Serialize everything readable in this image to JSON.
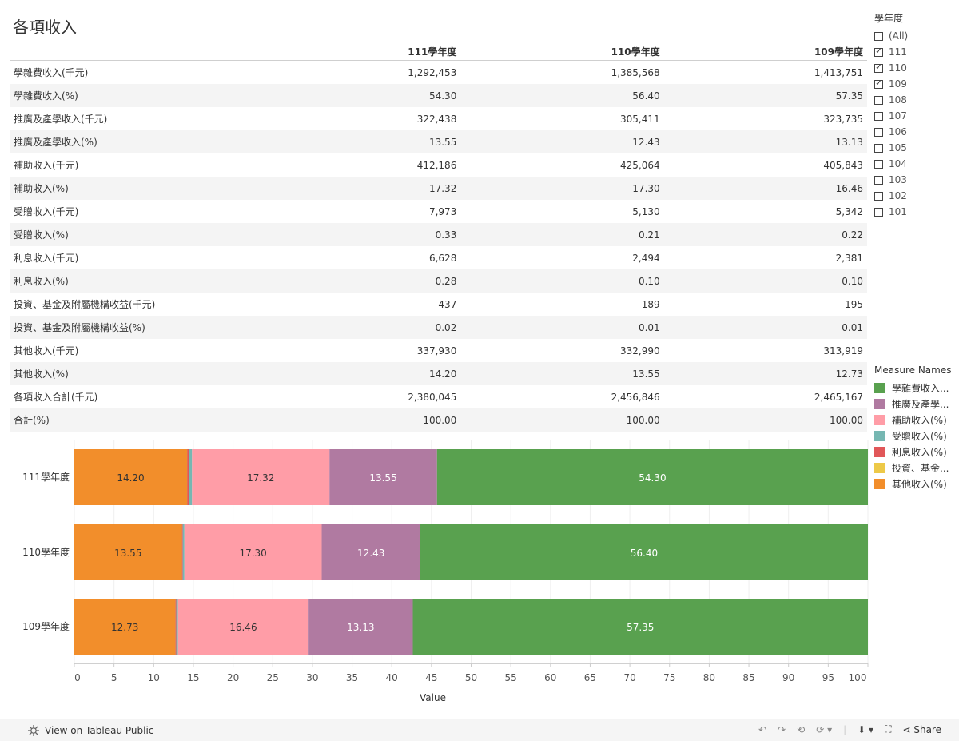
{
  "title": "各項收入",
  "table": {
    "headers": [
      "111學年度",
      "110學年度",
      "109學年度"
    ],
    "rows": [
      {
        "label": "學雜費收入(千元)",
        "values": [
          "1,292,453",
          "1,385,568",
          "1,413,751"
        ]
      },
      {
        "label": "學雜費收入(%)",
        "values": [
          "54.30",
          "56.40",
          "57.35"
        ]
      },
      {
        "label": "推廣及產學收入(千元)",
        "values": [
          "322,438",
          "305,411",
          "323,735"
        ]
      },
      {
        "label": "推廣及產學收入(%)",
        "values": [
          "13.55",
          "12.43",
          "13.13"
        ]
      },
      {
        "label": "補助收入(千元)",
        "values": [
          "412,186",
          "425,064",
          "405,843"
        ]
      },
      {
        "label": "補助收入(%)",
        "values": [
          "17.32",
          "17.30",
          "16.46"
        ]
      },
      {
        "label": "受贈收入(千元)",
        "values": [
          "7,973",
          "5,130",
          "5,342"
        ]
      },
      {
        "label": "受贈收入(%)",
        "values": [
          "0.33",
          "0.21",
          "0.22"
        ]
      },
      {
        "label": "利息收入(千元)",
        "values": [
          "6,628",
          "2,494",
          "2,381"
        ]
      },
      {
        "label": "利息收入(%)",
        "values": [
          "0.28",
          "0.10",
          "0.10"
        ]
      },
      {
        "label": "投資、基金及附屬機構收益(千元)",
        "values": [
          "437",
          "189",
          "195"
        ]
      },
      {
        "label": "投資、基金及附屬機構收益(%)",
        "values": [
          "0.02",
          "0.01",
          "0.01"
        ]
      },
      {
        "label": "其他收入(千元)",
        "values": [
          "337,930",
          "332,990",
          "313,919"
        ]
      },
      {
        "label": "其他收入(%)",
        "values": [
          "14.20",
          "13.55",
          "12.73"
        ]
      },
      {
        "label": "各項收入合計(千元)",
        "values": [
          "2,380,045",
          "2,456,846",
          "2,465,167"
        ]
      },
      {
        "label": "合計(%)",
        "values": [
          "100.00",
          "100.00",
          "100.00"
        ]
      }
    ]
  },
  "filter": {
    "title": "學年度",
    "items": [
      {
        "label": "(All)",
        "checked": false
      },
      {
        "label": "111",
        "checked": true
      },
      {
        "label": "110",
        "checked": true
      },
      {
        "label": "109",
        "checked": true
      },
      {
        "label": "108",
        "checked": false
      },
      {
        "label": "107",
        "checked": false
      },
      {
        "label": "106",
        "checked": false
      },
      {
        "label": "105",
        "checked": false
      },
      {
        "label": "104",
        "checked": false
      },
      {
        "label": "103",
        "checked": false
      },
      {
        "label": "102",
        "checked": false
      },
      {
        "label": "101",
        "checked": false
      }
    ]
  },
  "legend": {
    "title": "Measure Names",
    "items": [
      {
        "label": "學雜費收入...",
        "color": "#59a14f"
      },
      {
        "label": "推廣及產學...",
        "color": "#b07aa1"
      },
      {
        "label": "補助收入(%)",
        "color": "#ff9da7"
      },
      {
        "label": "受贈收入(%)",
        "color": "#76b7b2"
      },
      {
        "label": "利息收入(%)",
        "color": "#e15759"
      },
      {
        "label": "投資、基金...",
        "color": "#edc948"
      },
      {
        "label": "其他收入(%)",
        "color": "#f28e2b"
      }
    ]
  },
  "chart_data": {
    "type": "bar",
    "orientation": "horizontal",
    "stacked": true,
    "categories": [
      "111學年度",
      "110學年度",
      "109學年度"
    ],
    "series": [
      {
        "name": "其他收入(%)",
        "color": "#f28e2b",
        "values": [
          14.2,
          13.55,
          12.73
        ],
        "labels": [
          "14.20",
          "13.55",
          "12.73"
        ]
      },
      {
        "name": "投資、基金及附屬機構收益(%)",
        "color": "#edc948",
        "values": [
          0.02,
          0.01,
          0.01
        ]
      },
      {
        "name": "利息收入(%)",
        "color": "#e15759",
        "values": [
          0.28,
          0.1,
          0.1
        ]
      },
      {
        "name": "受贈收入(%)",
        "color": "#76b7b2",
        "values": [
          0.33,
          0.21,
          0.22
        ]
      },
      {
        "name": "補助收入(%)",
        "color": "#ff9da7",
        "values": [
          17.32,
          17.3,
          16.46
        ],
        "labels": [
          "17.32",
          "17.30",
          "16.46"
        ]
      },
      {
        "name": "推廣及產學收入(%)",
        "color": "#b07aa1",
        "values": [
          13.55,
          12.43,
          13.13
        ],
        "labels": [
          "13.55",
          "12.43",
          "13.13"
        ]
      },
      {
        "name": "學雜費收入(%)",
        "color": "#59a14f",
        "values": [
          54.3,
          56.4,
          57.35
        ],
        "labels": [
          "54.30",
          "56.40",
          "57.35"
        ]
      }
    ],
    "xlabel": "Value",
    "xlim": [
      0,
      100
    ],
    "xticks": [
      "0",
      "5",
      "10",
      "15",
      "20",
      "25",
      "30",
      "35",
      "40",
      "45",
      "50",
      "55",
      "60",
      "65",
      "70",
      "75",
      "80",
      "85",
      "90",
      "95",
      "100"
    ]
  },
  "footer": {
    "view_label": "View on Tableau Public",
    "share_label": "Share"
  }
}
